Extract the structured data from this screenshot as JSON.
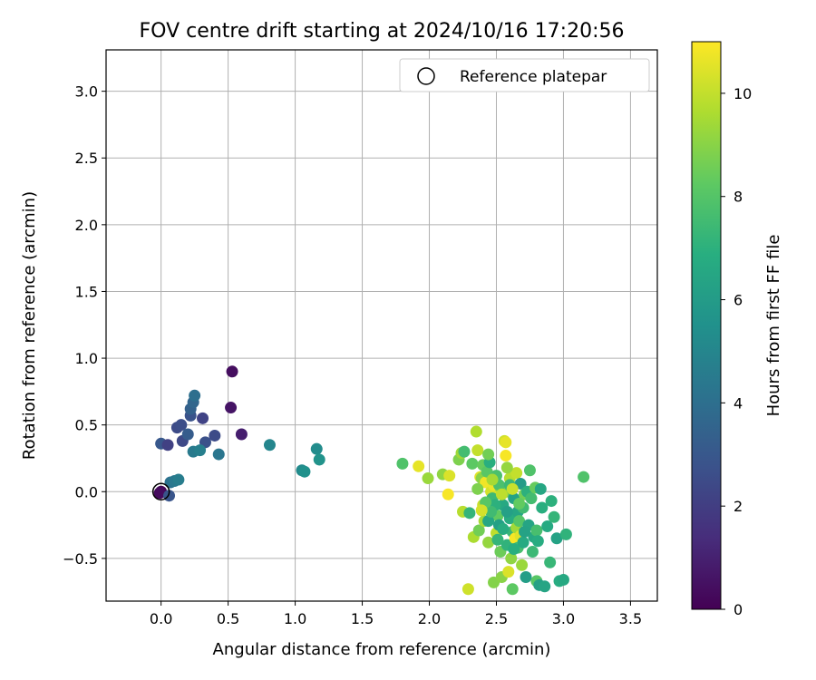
{
  "chart_data": {
    "type": "scatter",
    "title": "FOV centre drift starting at 2024/10/16 17:20:56",
    "xlabel": "Angular distance from reference (arcmin)",
    "ylabel": "Rotation from reference (arcmin)",
    "xlim": [
      -0.41,
      3.7
    ],
    "ylim": [
      -0.82,
      3.31
    ],
    "xticks": [
      0.0,
      0.5,
      1.0,
      1.5,
      2.0,
      2.5,
      3.0,
      3.5
    ],
    "xtick_labels": [
      "0.0",
      "0.5",
      "1.0",
      "1.5",
      "2.0",
      "2.5",
      "3.0",
      "3.5"
    ],
    "yticks": [
      -0.5,
      0.0,
      0.5,
      1.0,
      1.5,
      2.0,
      2.5,
      3.0
    ],
    "ytick_labels": [
      "−0.5",
      "0.0",
      "0.5",
      "1.0",
      "1.5",
      "2.0",
      "2.5",
      "3.0"
    ],
    "grid": true,
    "legend": {
      "position": "top-right",
      "entries": [
        "Reference platepar"
      ]
    },
    "reference_point": {
      "x": 0.0,
      "y": 0.0
    },
    "colorbar": {
      "label": "Hours from first FF file",
      "range": [
        0,
        11
      ],
      "ticks": [
        0,
        2,
        4,
        6,
        8,
        10
      ],
      "tick_labels": [
        "0",
        "2",
        "4",
        "6",
        "8",
        "10"
      ],
      "colormap": "viridis"
    },
    "points": [
      [
        0.0,
        0.0,
        0.1
      ],
      [
        -0.01,
        -0.01,
        0.3
      ],
      [
        0.53,
        0.9,
        0.4
      ],
      [
        0.52,
        0.63,
        0.6
      ],
      [
        0.6,
        0.43,
        0.9
      ],
      [
        0.12,
        0.48,
        2.5
      ],
      [
        0.15,
        0.5,
        2.6
      ],
      [
        0.16,
        0.38,
        2.4
      ],
      [
        0.2,
        0.43,
        3.2
      ],
      [
        0.22,
        0.57,
        2.8
      ],
      [
        0.22,
        0.62,
        3.4
      ],
      [
        0.24,
        0.67,
        3.6
      ],
      [
        0.25,
        0.72,
        4.0
      ],
      [
        0.31,
        0.55,
        2.2
      ],
      [
        0.33,
        0.37,
        2.7
      ],
      [
        0.4,
        0.42,
        2.5
      ],
      [
        0.43,
        0.28,
        4.3
      ],
      [
        0.24,
        0.3,
        4.5
      ],
      [
        0.29,
        0.31,
        4.7
      ],
      [
        0.0,
        0.36,
        3.0
      ],
      [
        0.05,
        0.35,
        2.1
      ],
      [
        0.07,
        0.07,
        4.1
      ],
      [
        0.1,
        0.08,
        4.4
      ],
      [
        0.13,
        0.09,
        4.6
      ],
      [
        0.06,
        -0.03,
        2.9
      ],
      [
        0.81,
        0.35,
        5.0
      ],
      [
        1.05,
        0.16,
        5.2
      ],
      [
        1.07,
        0.15,
        5.5
      ],
      [
        1.16,
        0.32,
        5.3
      ],
      [
        1.18,
        0.24,
        5.6
      ],
      [
        1.8,
        0.21,
        7.9
      ],
      [
        1.92,
        0.19,
        10.6
      ],
      [
        1.99,
        0.1,
        9.3
      ],
      [
        2.1,
        0.13,
        9.1
      ],
      [
        2.14,
        -0.02,
        10.9
      ],
      [
        2.15,
        0.12,
        10.4
      ],
      [
        2.22,
        0.24,
        8.8
      ],
      [
        2.24,
        0.29,
        9.4
      ],
      [
        2.26,
        0.3,
        7.6
      ],
      [
        2.25,
        -0.15,
        9.8
      ],
      [
        2.29,
        -0.73,
        10.2
      ],
      [
        2.3,
        -0.16,
        7.2
      ],
      [
        2.32,
        0.21,
        8.2
      ],
      [
        2.33,
        -0.34,
        9.6
      ],
      [
        2.35,
        0.45,
        9.7
      ],
      [
        2.36,
        0.31,
        10.0
      ],
      [
        2.37,
        -0.29,
        8.6
      ],
      [
        2.38,
        0.11,
        10.5
      ],
      [
        2.39,
        0.1,
        9.0
      ],
      [
        2.4,
        0.2,
        8.4
      ],
      [
        2.4,
        -0.1,
        10.1
      ],
      [
        2.41,
        -0.22,
        9.5
      ],
      [
        2.42,
        0.07,
        10.8
      ],
      [
        2.43,
        0.15,
        8.1
      ],
      [
        2.44,
        -0.38,
        9.2
      ],
      [
        2.45,
        0.22,
        6.9
      ],
      [
        2.46,
        0.0,
        10.3
      ],
      [
        2.47,
        -0.05,
        7.4
      ],
      [
        2.48,
        -0.68,
        8.9
      ],
      [
        2.48,
        0.05,
        10.7
      ],
      [
        2.5,
        -0.31,
        9.9
      ],
      [
        2.5,
        0.12,
        7.8
      ],
      [
        2.51,
        -0.18,
        8.3
      ],
      [
        2.52,
        -0.25,
        6.2
      ],
      [
        2.53,
        -0.45,
        8.5
      ],
      [
        2.53,
        0.03,
        9.6
      ],
      [
        2.54,
        -0.64,
        9.0
      ],
      [
        2.55,
        -0.1,
        6.6
      ],
      [
        2.56,
        0.38,
        10.2
      ],
      [
        2.57,
        0.37,
        10.6
      ],
      [
        2.57,
        0.27,
        10.9
      ],
      [
        2.58,
        -0.4,
        7.1
      ],
      [
        2.58,
        0.0,
        8.7
      ],
      [
        2.59,
        -0.6,
        10.4
      ],
      [
        2.6,
        -0.2,
        6.8
      ],
      [
        2.6,
        0.1,
        9.8
      ],
      [
        2.61,
        -0.5,
        9.1
      ],
      [
        2.62,
        -0.3,
        7.3
      ],
      [
        2.62,
        -0.73,
        8.2
      ],
      [
        2.63,
        -0.05,
        6.3
      ],
      [
        2.64,
        -0.35,
        10.9
      ],
      [
        2.65,
        0.14,
        10.0
      ],
      [
        2.65,
        -0.27,
        9.4
      ],
      [
        2.66,
        -0.15,
        6.5
      ],
      [
        2.66,
        -0.42,
        7.7
      ],
      [
        2.67,
        -0.22,
        8.0
      ],
      [
        2.68,
        0.06,
        6.0
      ],
      [
        2.68,
        -0.33,
        10.5
      ],
      [
        2.69,
        -0.55,
        9.3
      ],
      [
        2.7,
        -0.12,
        7.5
      ],
      [
        2.7,
        -0.38,
        6.7
      ],
      [
        2.71,
        -0.02,
        8.6
      ],
      [
        2.72,
        -0.64,
        6.1
      ],
      [
        2.73,
        0.0,
        7.0
      ],
      [
        2.74,
        -0.25,
        6.4
      ],
      [
        2.75,
        0.16,
        7.9
      ],
      [
        2.76,
        -0.05,
        7.6
      ],
      [
        2.77,
        -0.45,
        7.4
      ],
      [
        2.78,
        -0.34,
        6.6
      ],
      [
        2.79,
        0.03,
        8.4
      ],
      [
        2.8,
        -0.29,
        7.7
      ],
      [
        2.8,
        -0.67,
        8.1
      ],
      [
        2.81,
        -0.37,
        6.8
      ],
      [
        2.82,
        -0.7,
        6.2
      ],
      [
        2.83,
        0.02,
        6.5
      ],
      [
        2.84,
        -0.12,
        6.9
      ],
      [
        2.86,
        -0.71,
        6.4
      ],
      [
        2.88,
        -0.26,
        6.7
      ],
      [
        2.9,
        -0.53,
        7.3
      ],
      [
        2.91,
        -0.07,
        7.0
      ],
      [
        2.93,
        -0.19,
        7.2
      ],
      [
        2.95,
        -0.35,
        6.3
      ],
      [
        2.97,
        -0.67,
        6.8
      ],
      [
        3.0,
        -0.66,
        6.6
      ],
      [
        3.02,
        -0.32,
        7.1
      ],
      [
        3.15,
        0.11,
        7.9
      ],
      [
        2.44,
        -0.22,
        6.5
      ],
      [
        2.49,
        -0.1,
        7.0
      ],
      [
        2.55,
        -0.28,
        6.8
      ],
      [
        2.46,
        -0.15,
        7.5
      ],
      [
        2.52,
        0.05,
        7.8
      ],
      [
        2.58,
        -0.15,
        6.2
      ],
      [
        2.63,
        -0.43,
        6.9
      ],
      [
        2.71,
        -0.3,
        6.3
      ],
      [
        2.6,
        0.05,
        7.4
      ],
      [
        2.42,
        -0.08,
        8.1
      ],
      [
        2.51,
        -0.36,
        7.2
      ],
      [
        2.36,
        0.02,
        8.8
      ],
      [
        2.47,
        0.09,
        9.5
      ],
      [
        2.54,
        -0.02,
        9.9
      ],
      [
        2.39,
        -0.14,
        10.3
      ],
      [
        2.67,
        -0.09,
        8.3
      ],
      [
        2.58,
        0.18,
        9.2
      ],
      [
        2.44,
        0.28,
        8.6
      ],
      [
        2.62,
        0.02,
        10.1
      ]
    ]
  }
}
